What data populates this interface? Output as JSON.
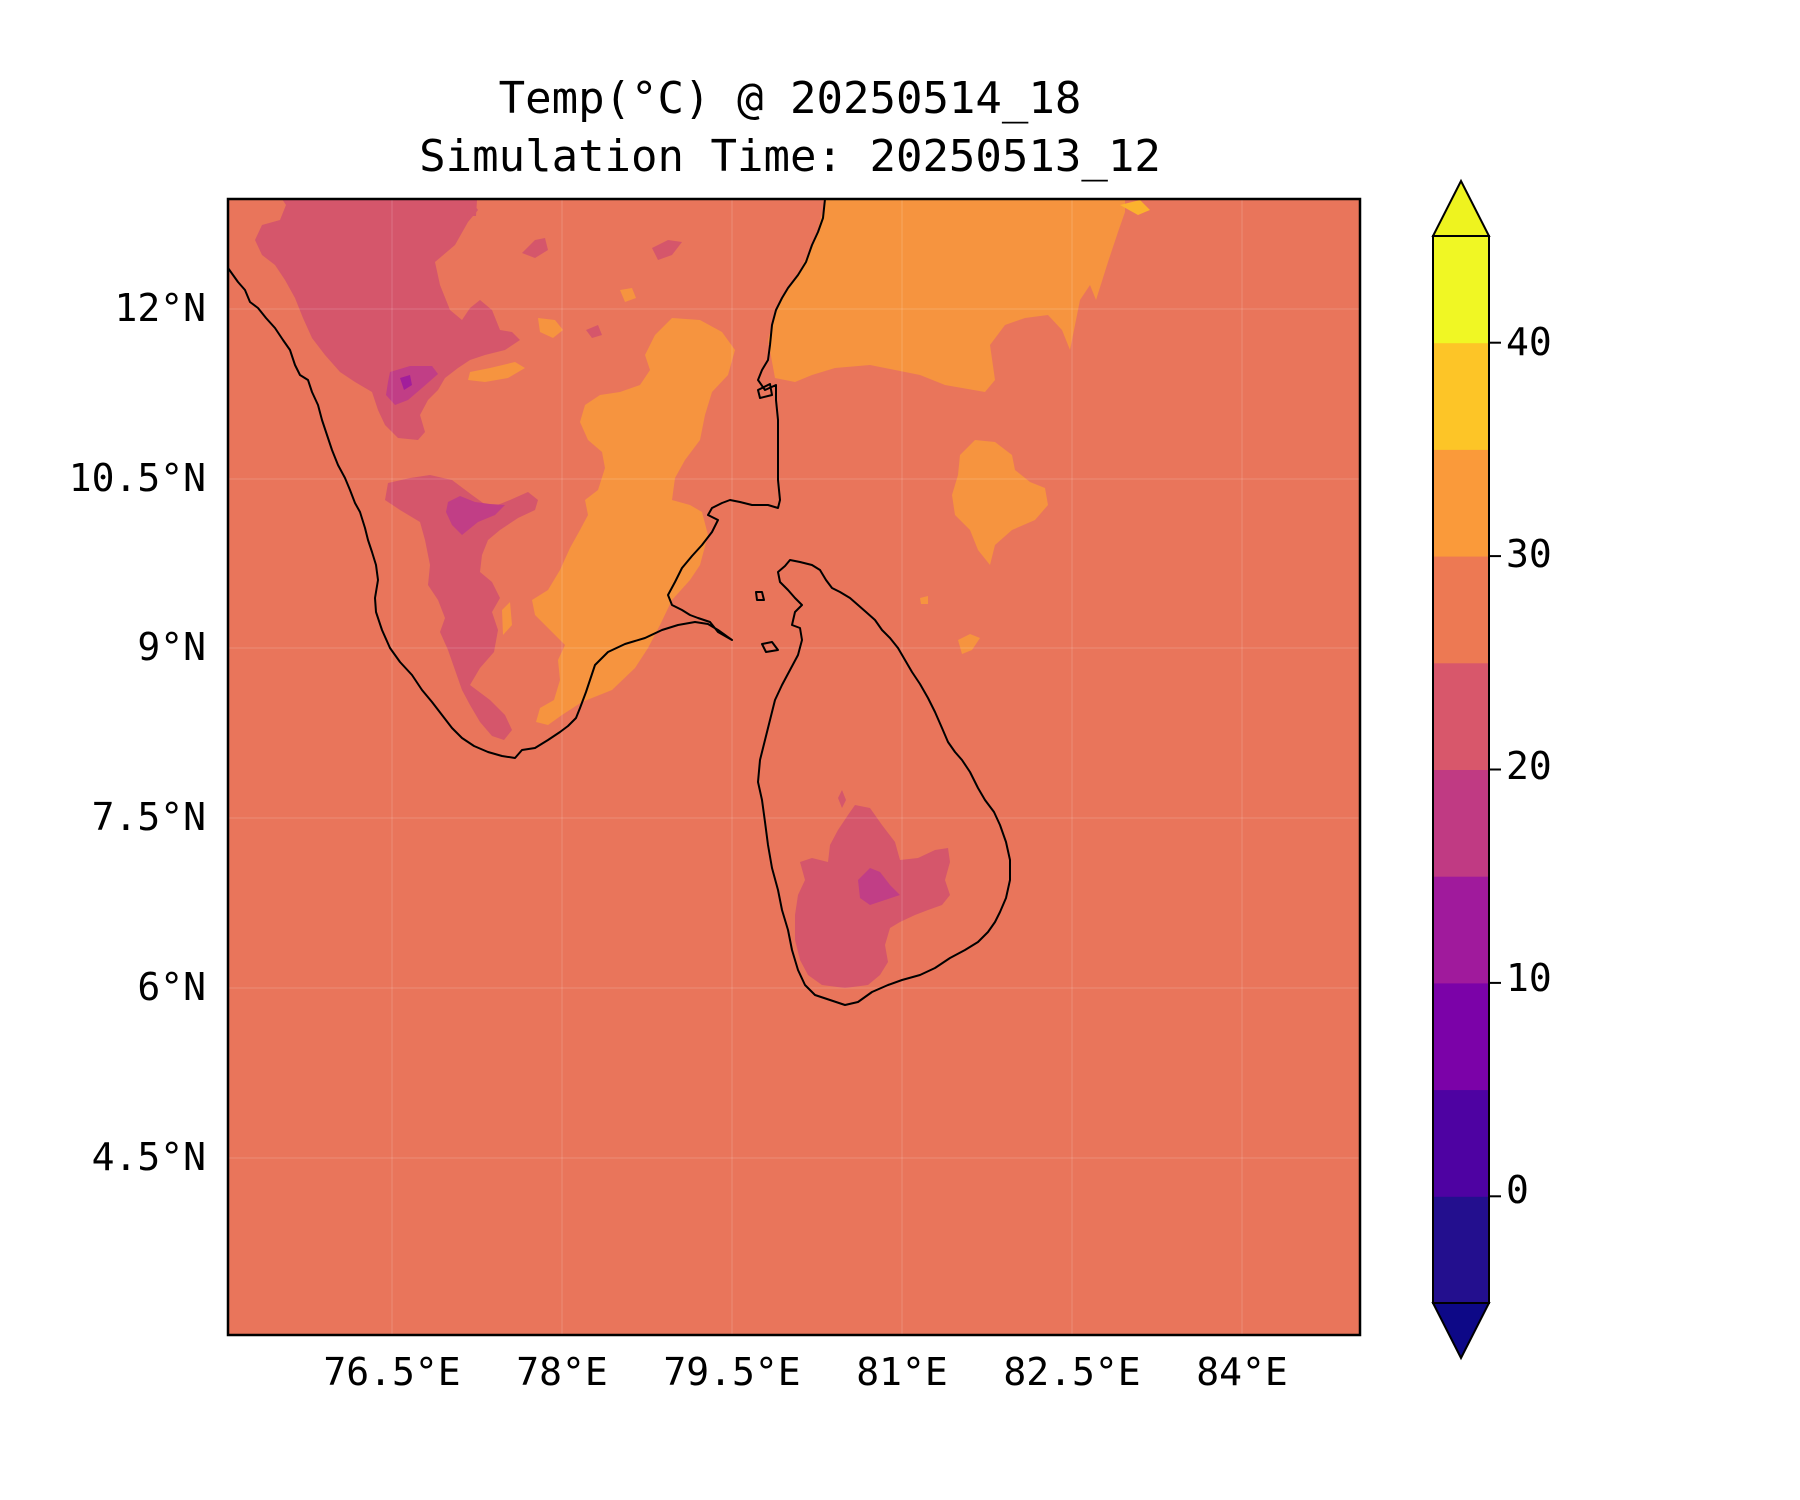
{
  "title": "Temp(°C) @ 20250514_18",
  "subtitle": "Simulation Time: 20250513_12",
  "map": {
    "region": "Southern India and Sri Lanka",
    "projection": "PlateCarree",
    "lon_range": [
      75.0,
      84.9
    ],
    "lat_range": [
      3.0,
      12.97
    ],
    "background_level_color": "#e9755b",
    "gridlines": true,
    "coastlines": true
  },
  "axes": {
    "y_ticks": [
      {
        "value": 12.0,
        "label": "12°N"
      },
      {
        "value": 10.5,
        "label": "10.5°N"
      },
      {
        "value": 9.0,
        "label": "9°N"
      },
      {
        "value": 7.5,
        "label": "7.5°N"
      },
      {
        "value": 6.0,
        "label": "6°N"
      },
      {
        "value": 4.5,
        "label": "4.5°N"
      }
    ],
    "x_ticks": [
      {
        "value": 76.5,
        "label": "76.5°E"
      },
      {
        "value": 78.0,
        "label": "78°E"
      },
      {
        "value": 79.5,
        "label": "79.5°E"
      },
      {
        "value": 81.0,
        "label": "81°E"
      },
      {
        "value": 82.5,
        "label": "82.5°E"
      },
      {
        "value": 84.0,
        "label": "84°E"
      }
    ]
  },
  "colorbar": {
    "extend": "both",
    "levels": [
      -5,
      0,
      5,
      10,
      15,
      20,
      25,
      30,
      35,
      40,
      45
    ],
    "colors": [
      "#230f8e",
      "#4e02a2",
      "#7b02a8",
      "#a01a9c",
      "#c03a83",
      "#d8576b",
      "#ed7953",
      "#fa9a3a",
      "#fdc527",
      "#f0f724"
    ],
    "under_color": "#0d0887",
    "over_color": "#eef31f",
    "ticks": [
      {
        "value": 0,
        "label": "0"
      },
      {
        "value": 10,
        "label": "10"
      },
      {
        "value": 20,
        "label": "20"
      },
      {
        "value": 30,
        "label": "30"
      },
      {
        "value": 40,
        "label": "40"
      }
    ]
  },
  "colors": {
    "level_25_30": "#e9755b",
    "level_30_35": "#f6943f",
    "level_20_25": "#d5566b",
    "level_15_20": "#c13e86",
    "level_10_15": "#a21e9b",
    "level_35_40": "#fbb22e",
    "coastline": "#000000"
  }
}
